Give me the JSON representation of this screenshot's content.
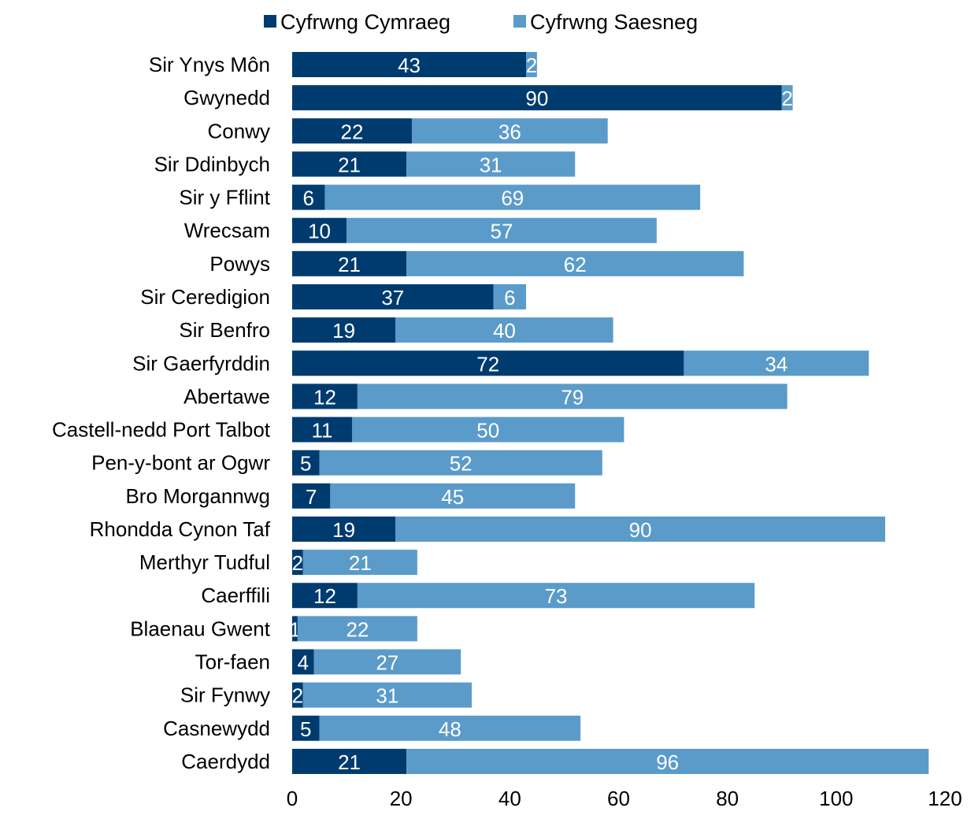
{
  "chart_data": {
    "type": "bar",
    "orientation": "horizontal",
    "stacked": true,
    "categories": [
      "Sir Ynys Môn",
      "Gwynedd",
      "Conwy",
      "Sir Ddinbych",
      "Sir y Fflint",
      "Wrecsam",
      "Powys",
      "Sir Ceredigion",
      "Sir Benfro",
      "Sir Gaerfyrddin",
      "Abertawe",
      "Castell-nedd Port Talbot",
      "Pen-y-bont ar Ogwr",
      "Bro Morgannwg",
      "Rhondda Cynon Taf",
      "Merthyr Tudful",
      "Caerffili",
      "Blaenau Gwent",
      "Tor-faen",
      "Sir Fynwy",
      "Casnewydd",
      "Caerdydd"
    ],
    "series": [
      {
        "name": "Cyfrwng Cymraeg",
        "color": "#003b6f",
        "values": [
          43,
          90,
          22,
          21,
          6,
          10,
          21,
          37,
          19,
          72,
          12,
          11,
          5,
          7,
          19,
          2,
          12,
          1,
          4,
          2,
          5,
          21
        ]
      },
      {
        "name": "Cyfrwng Saesneg",
        "color": "#5b9bca",
        "values": [
          2,
          2,
          36,
          31,
          69,
          57,
          62,
          6,
          40,
          34,
          79,
          50,
          52,
          45,
          90,
          21,
          73,
          22,
          27,
          31,
          48,
          96
        ]
      }
    ],
    "xlim": [
      0,
      120
    ],
    "xticks": [
      0,
      20,
      40,
      60,
      80,
      100,
      120
    ],
    "title": "",
    "xlabel": "",
    "ylabel": "",
    "grid": false,
    "legend_position": "top-center",
    "data_label_color": "#ffffff"
  }
}
